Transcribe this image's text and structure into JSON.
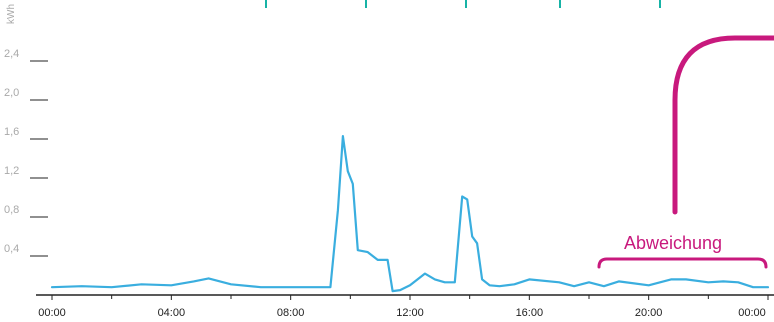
{
  "chart_data": {
    "type": "line",
    "ylabel": "kWh",
    "ylim": [
      0,
      2.6
    ],
    "y_ticks": [
      {
        "value": 0.4,
        "label": "0,4"
      },
      {
        "value": 0.8,
        "label": "0,8"
      },
      {
        "value": 1.2,
        "label": "1,2"
      },
      {
        "value": 1.6,
        "label": "1,6"
      },
      {
        "value": 2.0,
        "label": "2,0"
      },
      {
        "value": 2.4,
        "label": "2,4"
      }
    ],
    "xlim": [
      "00:00",
      "24:00"
    ],
    "x_ticks": [
      "00:00",
      "04:00",
      "08:00",
      "12:00",
      "16:00",
      "20:00",
      "00:00"
    ],
    "grid": false,
    "series": [
      {
        "color": "#3aaedf",
        "x": [
          "00:00",
          "01:00",
          "02:00",
          "03:00",
          "04:00",
          "04:45",
          "05:15",
          "06:00",
          "07:00",
          "08:00",
          "09:00",
          "09:20",
          "09:35",
          "09:45",
          "09:55",
          "10:05",
          "10:15",
          "10:35",
          "10:55",
          "11:15",
          "11:25",
          "11:40",
          "12:00",
          "12:30",
          "12:50",
          "13:10",
          "13:30",
          "13:45",
          "13:55",
          "14:05",
          "14:15",
          "14:25",
          "14:40",
          "15:00",
          "15:30",
          "16:00",
          "17:00",
          "17:30",
          "18:00",
          "18:30",
          "19:00",
          "20:00",
          "20:45",
          "21:15",
          "22:00",
          "22:30",
          "23:00",
          "23:30",
          "24:00"
        ],
        "y": [
          0.08,
          0.09,
          0.08,
          0.11,
          0.1,
          0.14,
          0.17,
          0.11,
          0.08,
          0.08,
          0.08,
          0.08,
          0.87,
          1.63,
          1.27,
          1.14,
          0.46,
          0.44,
          0.36,
          0.36,
          0.04,
          0.05,
          0.1,
          0.22,
          0.16,
          0.13,
          0.13,
          1.01,
          0.98,
          0.6,
          0.53,
          0.16,
          0.1,
          0.09,
          0.11,
          0.16,
          0.13,
          0.09,
          0.13,
          0.09,
          0.14,
          0.1,
          0.16,
          0.16,
          0.13,
          0.14,
          0.13,
          0.08,
          0.08
        ]
      }
    ],
    "annotations": [
      {
        "text": "Abweichung",
        "x_start": "18:00",
        "x_end": "24:00",
        "color": "#c8197d"
      }
    ]
  }
}
